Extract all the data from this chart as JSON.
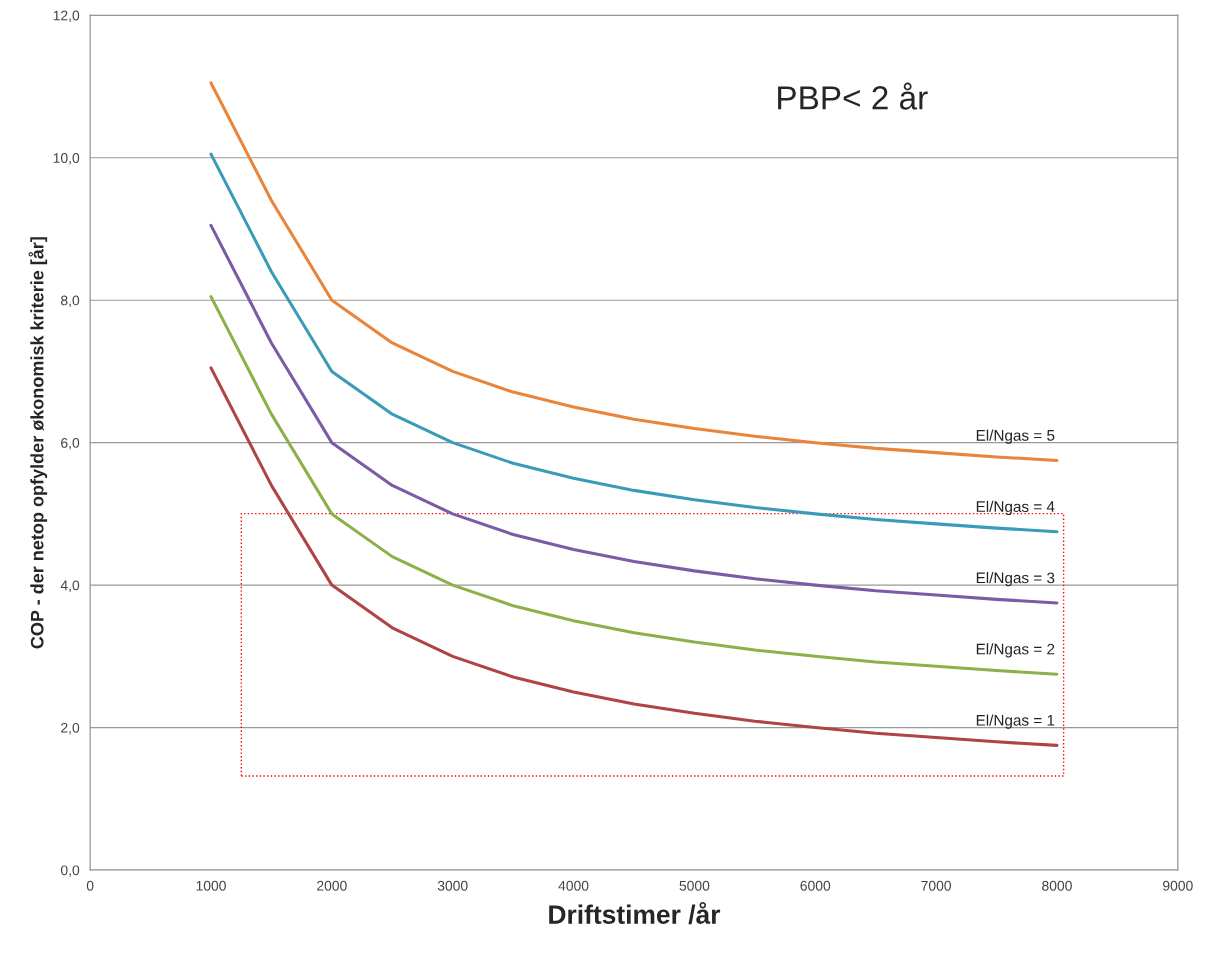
{
  "chart_data": {
    "type": "line",
    "xlabel": "Driftstimer /år",
    "ylabel": "COP - der netop opfylder økonomisk kriterie [år]",
    "annotations": [
      "PBP< 2 år"
    ],
    "x": [
      1000,
      1500,
      2000,
      2500,
      3000,
      3500,
      4000,
      4500,
      5000,
      5500,
      6000,
      6500,
      7000,
      7500,
      8000
    ],
    "series": [
      {
        "name": "El/Ngas = 5",
        "color": "#e8853a",
        "values": [
          11.05,
          9.4,
          8.0,
          7.4,
          7.0,
          6.71,
          6.5,
          6.33,
          6.2,
          6.09,
          6.0,
          5.92,
          5.86,
          5.8,
          5.75
        ]
      },
      {
        "name": "El/Ngas = 4",
        "color": "#3a9bb8",
        "values": [
          10.05,
          8.4,
          7.0,
          6.4,
          6.0,
          5.71,
          5.5,
          5.33,
          5.2,
          5.09,
          5.0,
          4.92,
          4.86,
          4.8,
          4.75
        ]
      },
      {
        "name": "El/Ngas = 3",
        "color": "#7b5aa6",
        "values": [
          9.05,
          7.4,
          6.0,
          5.4,
          5.0,
          4.71,
          4.5,
          4.33,
          4.2,
          4.09,
          4.0,
          3.92,
          3.86,
          3.8,
          3.75
        ]
      },
      {
        "name": "El/Ngas = 2",
        "color": "#8db04a",
        "values": [
          8.05,
          6.4,
          5.0,
          4.4,
          4.0,
          3.71,
          3.5,
          3.33,
          3.2,
          3.09,
          3.0,
          2.92,
          2.86,
          2.8,
          2.75
        ]
      },
      {
        "name": "El/Ngas = 1",
        "color": "#b04343",
        "values": [
          7.05,
          5.4,
          4.0,
          3.4,
          3.0,
          2.71,
          2.5,
          2.33,
          2.2,
          2.09,
          2.0,
          1.92,
          1.86,
          1.8,
          1.75
        ]
      }
    ],
    "xlim": [
      0,
      9000
    ],
    "xticks": [
      0,
      1000,
      2000,
      3000,
      4000,
      5000,
      6000,
      7000,
      8000,
      9000
    ],
    "ylim": [
      0,
      12
    ],
    "yticks": [
      {
        "value": 0,
        "label": "0,0"
      },
      {
        "value": 2,
        "label": "2,0"
      },
      {
        "value": 4,
        "label": "4,0"
      },
      {
        "value": 6,
        "label": "6,0"
      },
      {
        "value": 8,
        "label": "8,0"
      },
      {
        "value": 10,
        "label": "10,0"
      },
      {
        "value": 12,
        "label": "12,0"
      }
    ],
    "grid": "y",
    "marker": "none",
    "line_style": "solid",
    "legend": false
  }
}
